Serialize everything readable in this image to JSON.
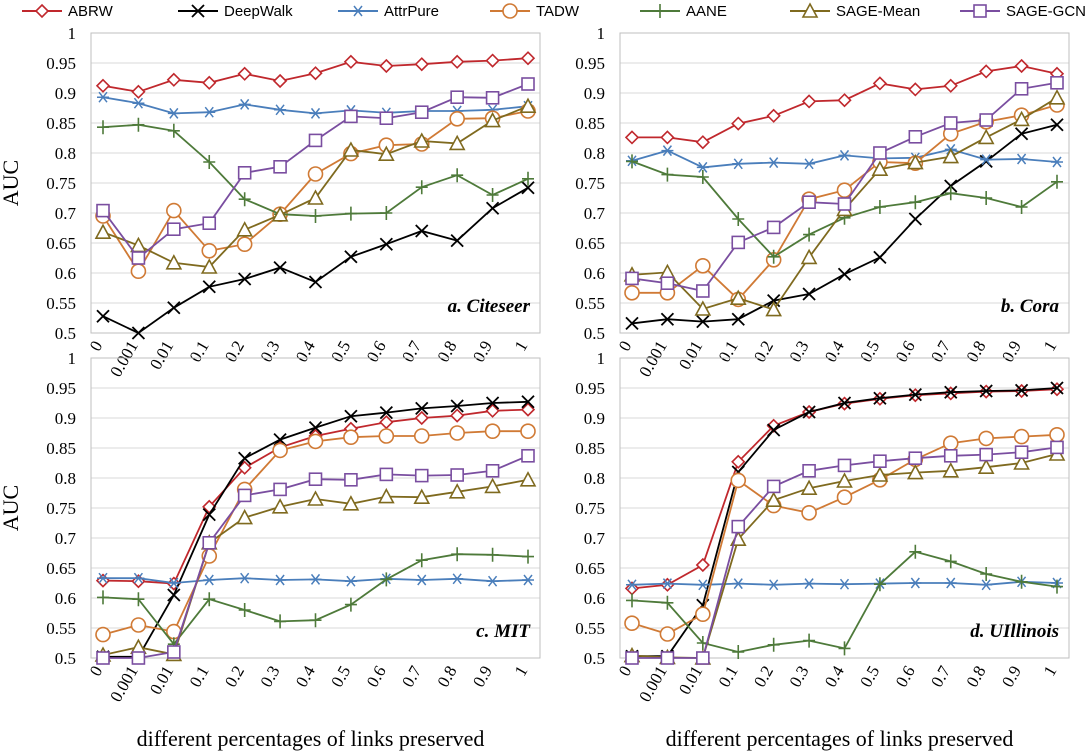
{
  "chart_data": {
    "type": "line",
    "x_categories": [
      "0",
      "0.001",
      "0.01",
      "0.1",
      "0.2",
      "0.3",
      "0.4",
      "0.5",
      "0.6",
      "0.7",
      "0.8",
      "0.9",
      "1"
    ],
    "xlabel": "different percentages of links preserved",
    "ylabel": "AUC",
    "y_ticks": [
      "0.5",
      "0.55",
      "0.6",
      "0.65",
      "0.7",
      "0.75",
      "0.8",
      "0.85",
      "0.9",
      "0.95",
      "1"
    ],
    "ylim": [
      0.5,
      1.0
    ],
    "legend": [
      {
        "name": "ABRW",
        "color": "#c0282d",
        "marker": "diamond"
      },
      {
        "name": "DeepWalk",
        "color": "#000000",
        "marker": "x"
      },
      {
        "name": "AttrPure",
        "color": "#4a7ebb",
        "marker": "star"
      },
      {
        "name": "TADW",
        "color": "#d07a35",
        "marker": "circle"
      },
      {
        "name": "AANE",
        "color": "#4e7a3a",
        "marker": "plus"
      },
      {
        "name": "SAGE-Mean",
        "color": "#7f6a1f",
        "marker": "triangle"
      },
      {
        "name": "SAGE-GCN",
        "color": "#7a4ea0",
        "marker": "square"
      }
    ],
    "panels": [
      {
        "title": "a. Citeseer",
        "series": {
          "ABRW": [
            0.912,
            0.902,
            0.922,
            0.917,
            0.932,
            0.92,
            0.933,
            0.952,
            0.945,
            0.948,
            0.952,
            0.954,
            0.958
          ],
          "DeepWalk": [
            0.528,
            0.5,
            0.542,
            0.577,
            0.59,
            0.609,
            0.585,
            0.627,
            0.648,
            0.67,
            0.654,
            0.708,
            0.742
          ],
          "AttrPure": [
            0.893,
            0.883,
            0.866,
            0.868,
            0.881,
            0.872,
            0.866,
            0.871,
            0.867,
            0.87,
            0.87,
            0.872,
            0.878
          ],
          "TADW": [
            0.695,
            0.603,
            0.704,
            0.637,
            0.648,
            0.698,
            0.765,
            0.799,
            0.813,
            0.815,
            0.857,
            0.858,
            0.87
          ],
          "AANE": [
            0.843,
            0.847,
            0.837,
            0.785,
            0.723,
            0.698,
            0.695,
            0.699,
            0.7,
            0.743,
            0.763,
            0.73,
            0.757
          ],
          "SAGE-Mean": [
            0.668,
            0.646,
            0.617,
            0.61,
            0.672,
            0.697,
            0.725,
            0.805,
            0.798,
            0.82,
            0.816,
            0.854,
            0.878
          ],
          "SAGE-GCN": [
            0.704,
            0.625,
            0.673,
            0.683,
            0.767,
            0.777,
            0.821,
            0.861,
            0.858,
            0.868,
            0.893,
            0.892,
            0.915
          ]
        }
      },
      {
        "title": "b. Cora",
        "series": {
          "ABRW": [
            0.826,
            0.826,
            0.818,
            0.849,
            0.862,
            0.886,
            0.888,
            0.916,
            0.906,
            0.912,
            0.936,
            0.945,
            0.932
          ],
          "DeepWalk": [
            0.516,
            0.523,
            0.519,
            0.523,
            0.554,
            0.565,
            0.598,
            0.626,
            0.69,
            0.745,
            0.786,
            0.832,
            0.847
          ],
          "AttrPure": [
            0.787,
            0.804,
            0.776,
            0.782,
            0.784,
            0.782,
            0.796,
            0.791,
            0.792,
            0.806,
            0.789,
            0.79,
            0.785
          ],
          "TADW": [
            0.567,
            0.567,
            0.612,
            0.556,
            0.622,
            0.723,
            0.738,
            0.785,
            0.783,
            0.832,
            0.852,
            0.863,
            0.88
          ],
          "AANE": [
            0.786,
            0.764,
            0.76,
            0.69,
            0.627,
            0.664,
            0.692,
            0.71,
            0.718,
            0.733,
            0.725,
            0.71,
            0.752
          ],
          "SAGE-Mean": [
            0.597,
            0.601,
            0.54,
            0.558,
            0.539,
            0.626,
            0.706,
            0.773,
            0.784,
            0.794,
            0.826,
            0.856,
            0.892
          ],
          "SAGE-GCN": [
            0.591,
            0.583,
            0.57,
            0.651,
            0.676,
            0.718,
            0.715,
            0.8,
            0.827,
            0.85,
            0.855,
            0.907,
            0.917
          ]
        }
      },
      {
        "title": "c. MIT",
        "series": {
          "ABRW": [
            0.629,
            0.628,
            0.624,
            0.752,
            0.817,
            0.851,
            0.87,
            0.882,
            0.893,
            0.9,
            0.904,
            0.912,
            0.914
          ],
          "DeepWalk": [
            0.502,
            0.502,
            0.605,
            0.739,
            0.833,
            0.864,
            0.884,
            0.903,
            0.909,
            0.916,
            0.92,
            0.925,
            0.927
          ],
          "AttrPure": [
            0.633,
            0.633,
            0.625,
            0.63,
            0.633,
            0.63,
            0.631,
            0.628,
            0.632,
            0.63,
            0.632,
            0.628,
            0.63
          ],
          "TADW": [
            0.539,
            0.555,
            0.544,
            0.67,
            0.781,
            0.846,
            0.861,
            0.868,
            0.87,
            0.87,
            0.875,
            0.878,
            0.878
          ],
          "AANE": [
            0.601,
            0.598,
            0.523,
            0.598,
            0.58,
            0.561,
            0.563,
            0.589,
            0.631,
            0.663,
            0.673,
            0.672,
            0.669
          ],
          "SAGE-Mean": [
            0.505,
            0.518,
            0.506,
            0.692,
            0.734,
            0.752,
            0.765,
            0.757,
            0.769,
            0.768,
            0.777,
            0.786,
            0.797
          ],
          "SAGE-GCN": [
            0.5,
            0.5,
            0.51,
            0.692,
            0.771,
            0.781,
            0.798,
            0.797,
            0.806,
            0.804,
            0.805,
            0.812,
            0.837
          ]
        }
      },
      {
        "title": "d. UIllinois",
        "series": {
          "ABRW": [
            0.616,
            0.622,
            0.655,
            0.827,
            0.887,
            0.91,
            0.924,
            0.932,
            0.938,
            0.941,
            0.944,
            0.945,
            0.948
          ],
          "DeepWalk": [
            0.503,
            0.503,
            0.588,
            0.81,
            0.88,
            0.91,
            0.925,
            0.933,
            0.939,
            0.943,
            0.945,
            0.946,
            0.95
          ],
          "AttrPure": [
            0.622,
            0.624,
            0.622,
            0.624,
            0.622,
            0.624,
            0.623,
            0.624,
            0.625,
            0.625,
            0.622,
            0.627,
            0.625
          ],
          "TADW": [
            0.558,
            0.54,
            0.573,
            0.796,
            0.754,
            0.742,
            0.768,
            0.797,
            0.831,
            0.858,
            0.866,
            0.869,
            0.872
          ],
          "AANE": [
            0.596,
            0.592,
            0.525,
            0.51,
            0.522,
            0.529,
            0.516,
            0.623,
            0.677,
            0.661,
            0.64,
            0.627,
            0.619
          ],
          "SAGE-Mean": [
            0.504,
            0.501,
            0.5,
            0.698,
            0.763,
            0.783,
            0.795,
            0.805,
            0.809,
            0.812,
            0.818,
            0.825,
            0.84
          ],
          "SAGE-GCN": [
            0.5,
            0.5,
            0.5,
            0.719,
            0.786,
            0.812,
            0.821,
            0.828,
            0.833,
            0.837,
            0.839,
            0.843,
            0.851
          ]
        }
      }
    ]
  }
}
